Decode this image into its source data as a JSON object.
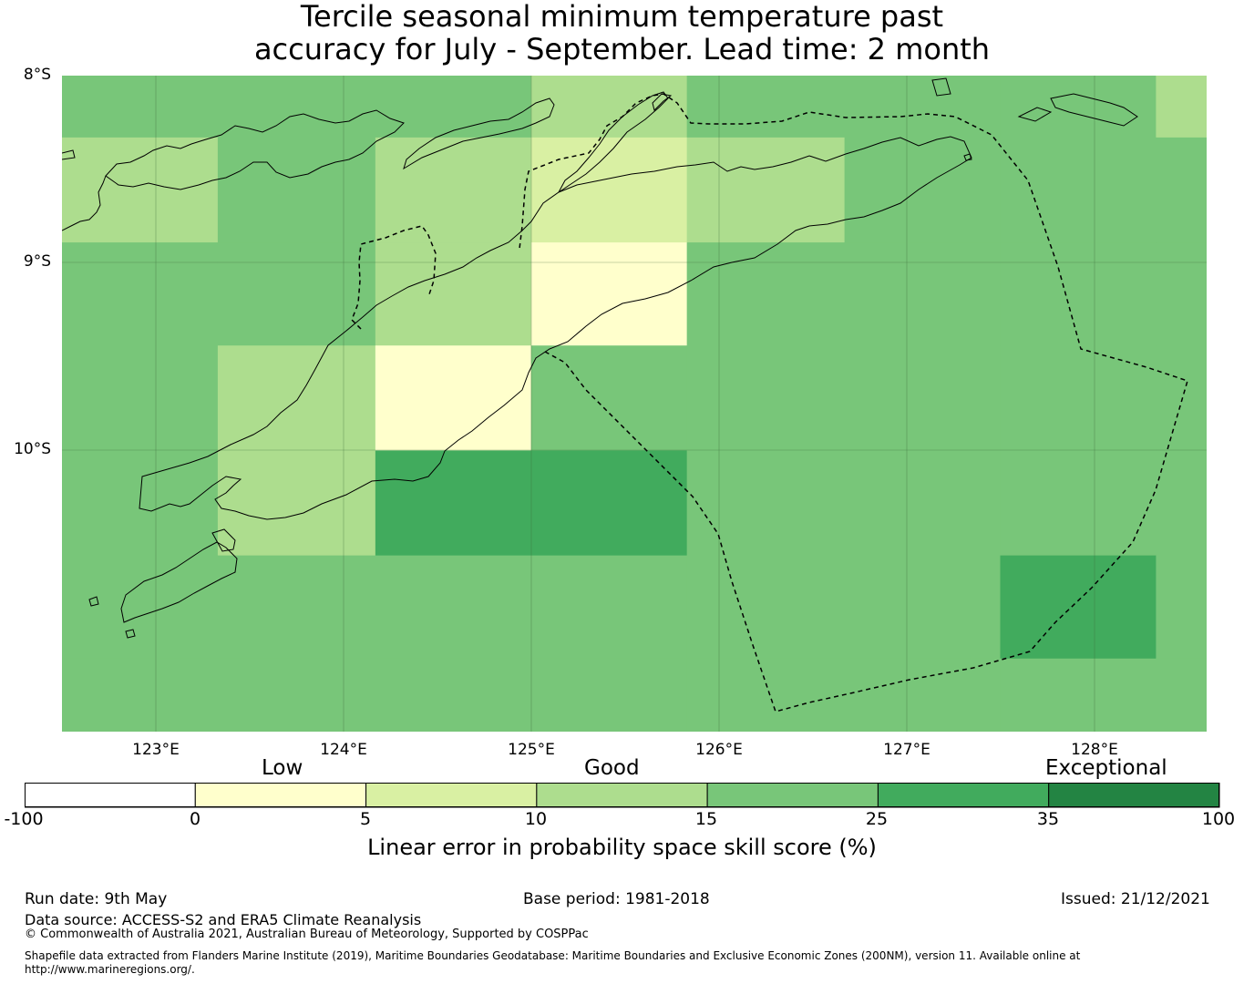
{
  "title": {
    "line1": "Tercile seasonal minimum temperature past",
    "line2": "accuracy for July - September. Lead time: 2 month"
  },
  "map": {
    "lat_labels": [
      "8°S",
      "9°S",
      "10°S"
    ],
    "lon_labels": [
      "123°E",
      "124°E",
      "125°E",
      "126°E",
      "127°E",
      "128°E"
    ],
    "extent": {
      "lon": [
        122.5,
        128.6
      ],
      "lat": [
        -8.0,
        -11.5
      ]
    },
    "grid_cells": {
      "lon_edges": [
        122.5,
        123.33,
        124.17,
        125.0,
        125.83,
        126.67,
        127.5,
        128.33,
        128.6
      ],
      "lat_edges": [
        -8.0,
        -8.33,
        -8.89,
        -9.44,
        -10.0,
        -10.56,
        -11.11,
        -11.5
      ],
      "skill_pct": [
        [
          20,
          20,
          20,
          12,
          20,
          20,
          20,
          12
        ],
        [
          12,
          20,
          12,
          8,
          12,
          20,
          20,
          20
        ],
        [
          20,
          20,
          12,
          2,
          20,
          20,
          20,
          20
        ],
        [
          20,
          12,
          2,
          20,
          20,
          20,
          20,
          20
        ],
        [
          20,
          12,
          30,
          30,
          20,
          20,
          20,
          20
        ],
        [
          20,
          20,
          20,
          20,
          20,
          20,
          30,
          20
        ],
        [
          20,
          20,
          20,
          20,
          20,
          20,
          20,
          20
        ]
      ]
    },
    "colors": {
      "below0": "#ffffff",
      "0-5": "#ffffcc",
      "5-10": "#d9f0a3",
      "10-15": "#addd8e",
      "15-25": "#78c679",
      "25-35": "#41ab5d",
      "35-100": "#238443"
    }
  },
  "colorbar": {
    "categories": [
      "Low",
      "Good",
      "Exceptional"
    ],
    "ticks": [
      "-100",
      "0",
      "5",
      "10",
      "15",
      "25",
      "35",
      "100"
    ],
    "colors": [
      "#ffffff",
      "#ffffcc",
      "#d9f0a3",
      "#addd8e",
      "#78c679",
      "#41ab5d",
      "#238443"
    ],
    "label": "Linear error in probability space skill score (%)"
  },
  "footer": {
    "run_date": "Run date: 9th May",
    "base_period": "Base period: 1981-2018",
    "issued": "Issued: 21/12/2021",
    "data_source": "Data source: ACCESS-S2 and ERA5 Climate Reanalysis",
    "copyright": "© Commonwealth of Australia 2021, Australian Bureau of Meteorology, Supported by COSPPac",
    "shapefile_line1": "Shapefile data extracted from Flanders Marine Institute (2019), Maritime Boundaries Geodatabase: Maritime Boundaries and Exclusive Economic Zones (200NM), version 11. Available online at",
    "shapefile_line2": "http://www.marineregions.org/."
  }
}
